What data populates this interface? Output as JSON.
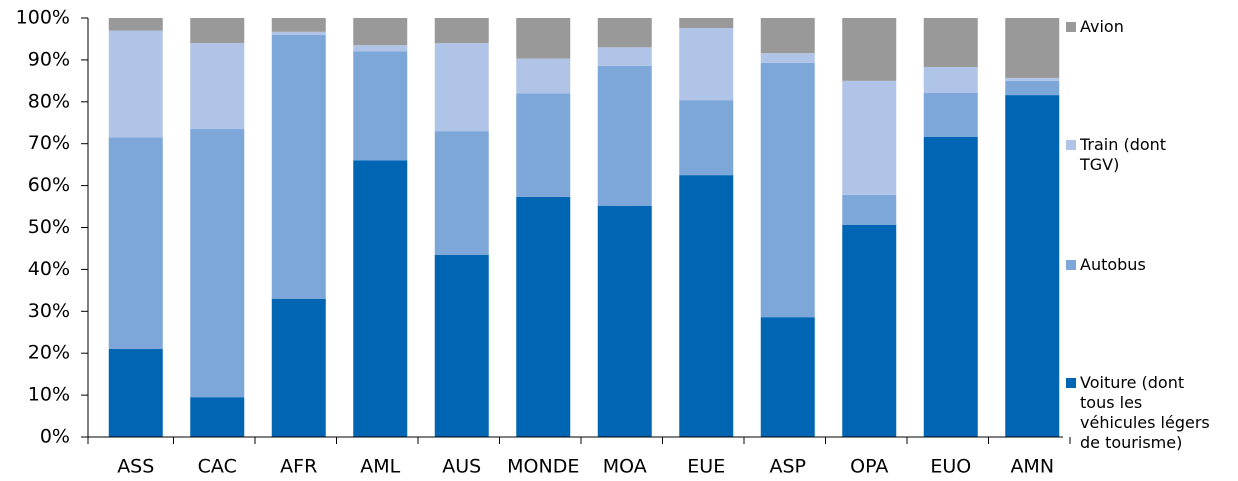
{
  "chart_data": {
    "type": "stacked_bar",
    "categories": [
      "ASS",
      "CAC",
      "AFR",
      "AML",
      "AUS",
      "MONDE",
      "MOA",
      "EUE",
      "ASP",
      "OPA",
      "EUO",
      "AMN"
    ],
    "series": [
      {
        "name": "Voiture (dont tous les véhicules légers de tourisme)",
        "color": "#0066b3",
        "values": [
          21,
          9.5,
          33,
          66,
          43.5,
          57.3,
          55.2,
          62.5,
          28.6,
          50.6,
          71.6,
          81.6
        ]
      },
      {
        "name": "Autobus",
        "color": "#7da7d9",
        "values": [
          50.5,
          64,
          63,
          26,
          29.5,
          24.7,
          33.4,
          17.9,
          60.7,
          7.2,
          10.5,
          3.4
        ]
      },
      {
        "name": "Train (dont TGV)",
        "color": "#b0c4e8",
        "values": [
          25.5,
          20.5,
          0.7,
          1.5,
          21,
          8.3,
          4.4,
          17.2,
          2.3,
          27.2,
          6.2,
          0.7
        ]
      },
      {
        "name": "Avion",
        "color": "#999999",
        "values": [
          3,
          6,
          3.3,
          6.5,
          6,
          9.7,
          7,
          2.4,
          8.4,
          15,
          11.7,
          14.3
        ]
      }
    ],
    "ylim": [
      0,
      100
    ],
    "yticks": [
      {
        "value": 0,
        "label": "0%"
      },
      {
        "value": 10,
        "label": "10%"
      },
      {
        "value": 20,
        "label": "20%"
      },
      {
        "value": 30,
        "label": "30%"
      },
      {
        "value": 40,
        "label": "40%"
      },
      {
        "value": 50,
        "label": "50%"
      },
      {
        "value": 60,
        "label": "60%"
      },
      {
        "value": 70,
        "label": "70%"
      },
      {
        "value": 80,
        "label": "80%"
      },
      {
        "value": 90,
        "label": "90%"
      },
      {
        "value": 100,
        "label": "100%"
      }
    ],
    "legend": "right"
  }
}
